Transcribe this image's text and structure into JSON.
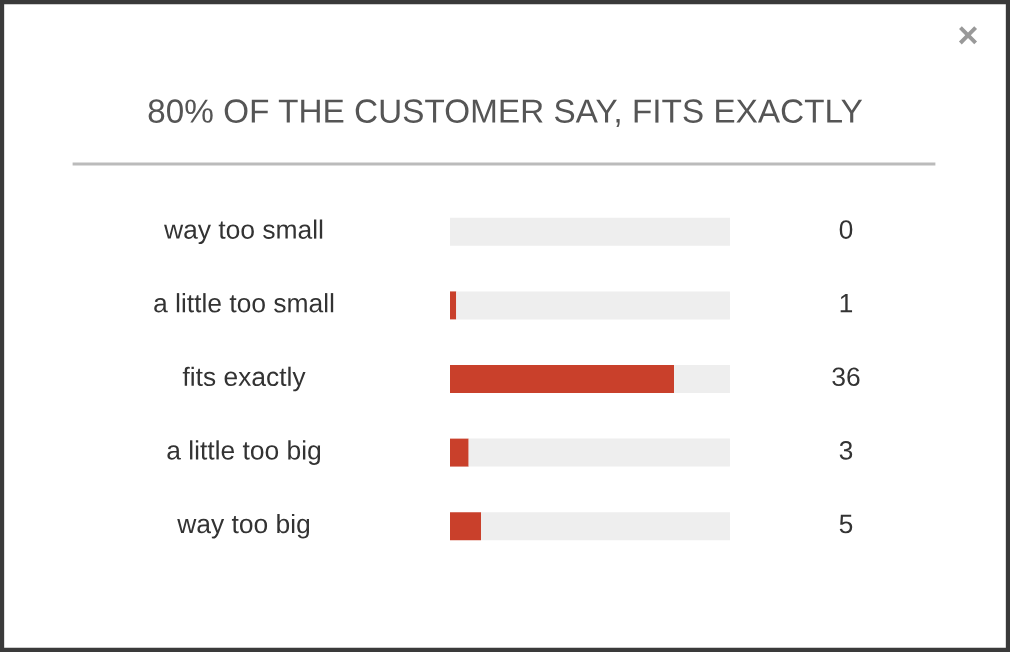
{
  "chart_data": {
    "type": "bar",
    "orientation": "horizontal",
    "stacked": true,
    "title": "80% OF THE CUSTOMER SAY, FITS EXACTLY",
    "categories": [
      "way too small",
      "a little too small",
      "fits exactly",
      "a little too big",
      "way too big"
    ],
    "series": [
      {
        "color": "#c9402b",
        "values": [
          0,
          1,
          36,
          3,
          5
        ],
        "value_labels": [
          "0",
          "1",
          "36",
          "3",
          "5"
        ]
      },
      {
        "color": "#eeeeee",
        "values": [
          45,
          44,
          9,
          42,
          40
        ]
      }
    ],
    "xlim": [
      0,
      45
    ],
    "annotations": [
      "×"
    ]
  }
}
